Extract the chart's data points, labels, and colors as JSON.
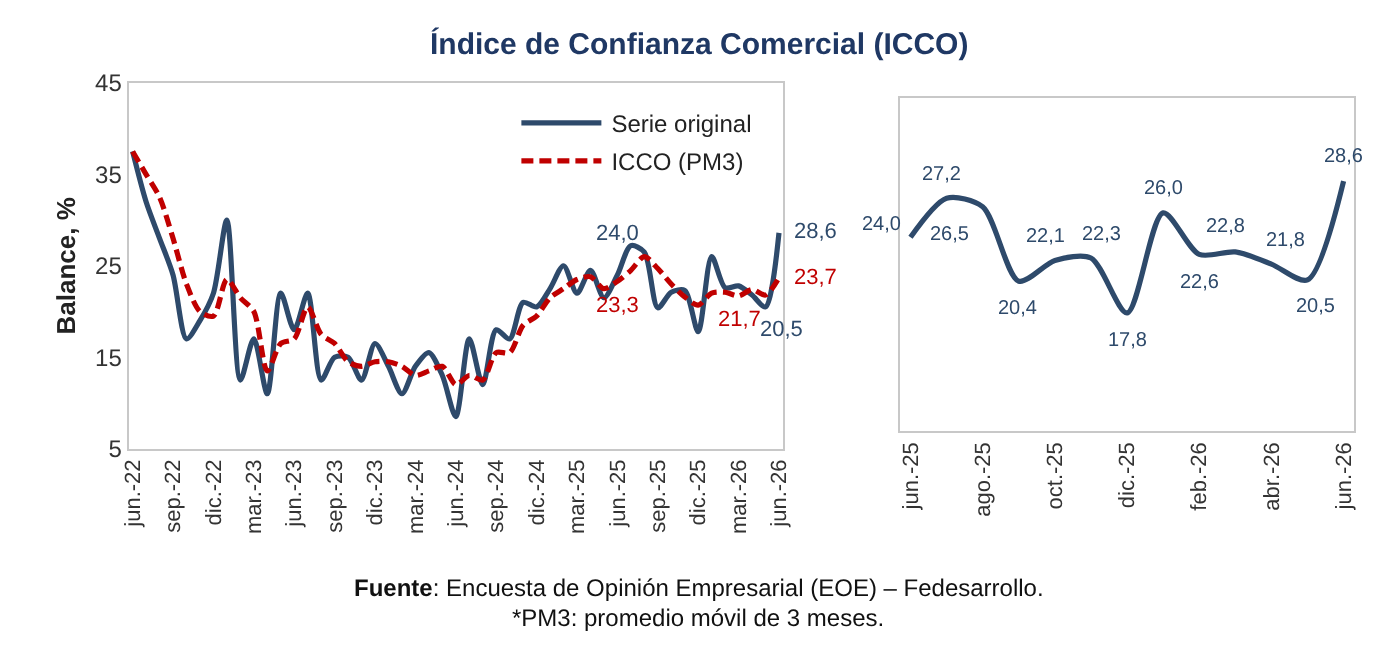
{
  "chart_data": [
    {
      "type": "line",
      "title": "Índice de Confianza Comercial (ICCO)",
      "ylabel": "Balance, %",
      "categories": [
        "jun.-22",
        null,
        null,
        "sep.-22",
        null,
        null,
        "dic.-22",
        null,
        null,
        "mar.-23",
        null,
        null,
        "jun.-23",
        null,
        null,
        "sep.-23",
        null,
        null,
        "dic.-23",
        null,
        null,
        "mar.-24",
        null,
        null,
        "jun.-24",
        null,
        null,
        "sep.-24",
        null,
        null,
        "dic.-24",
        null,
        null,
        "mar.-25",
        null,
        null,
        "jun.-25",
        null,
        null,
        "sep.-25",
        null,
        null,
        "dic.-25",
        null,
        null,
        "mar.-26",
        null,
        null,
        "jun.-26"
      ],
      "series": [
        {
          "name": "Serie original",
          "color": "#2e4a6b",
          "line_style": "solid",
          "values": [
            37.5,
            32,
            28,
            24,
            17,
            19,
            22,
            30,
            12.5,
            17,
            11,
            22,
            18,
            22,
            12.5,
            15,
            15,
            12.5,
            16.5,
            14,
            11,
            14,
            15.5,
            13,
            8.5,
            17,
            12,
            18,
            17,
            21,
            20.5,
            22.5,
            25,
            22,
            24.5,
            21.5,
            24.0,
            27.2,
            26.5,
            20.4,
            22.1,
            22.3,
            17.8,
            26.0,
            22.6,
            22.8,
            21.8,
            20.5,
            28.6
          ],
          "value_labels": [
            null,
            null,
            null,
            null,
            null,
            null,
            null,
            null,
            null,
            null,
            null,
            null,
            null,
            null,
            null,
            null,
            null,
            null,
            null,
            null,
            null,
            null,
            null,
            null,
            null,
            null,
            null,
            null,
            null,
            null,
            null,
            null,
            null,
            null,
            null,
            null,
            "24,0",
            null,
            null,
            null,
            null,
            null,
            null,
            null,
            null,
            null,
            null,
            "20,5",
            "28,6"
          ]
        },
        {
          "name": "ICCO (PM3)",
          "color": "#c00000",
          "line_style": "dashed",
          "values": [
            37.5,
            35,
            32.5,
            28,
            23,
            20,
            19.5,
            23.5,
            21.5,
            20,
            13.5,
            16.5,
            17,
            20.5,
            17.5,
            16.5,
            14.5,
            14,
            14.5,
            14.5,
            14,
            13,
            13.5,
            14,
            12,
            13,
            12.5,
            15.5,
            15.5,
            18.5,
            19.5,
            21.5,
            22.5,
            23.5,
            23.8,
            22.5,
            23.3,
            24.5,
            26,
            24.7,
            23,
            21.6,
            20.7,
            22,
            22.1,
            21.7,
            22.4,
            21.8,
            23.7
          ],
          "value_labels": [
            null,
            null,
            null,
            null,
            null,
            null,
            null,
            null,
            null,
            null,
            null,
            null,
            null,
            null,
            null,
            null,
            null,
            null,
            null,
            null,
            null,
            null,
            null,
            null,
            null,
            null,
            null,
            null,
            null,
            null,
            null,
            null,
            null,
            null,
            null,
            null,
            "23,3",
            null,
            null,
            null,
            null,
            null,
            null,
            null,
            null,
            "21,7",
            null,
            null,
            "23,7"
          ]
        }
      ],
      "ylim": [
        5,
        45
      ],
      "yticks": [
        5,
        15,
        25,
        35,
        45
      ],
      "legend": "top right",
      "marker": "none",
      "annotations": [
        "Fuente: Encuesta de Opinión Empresarial (EOE) – Fedesarrollo.",
        "*PM3: promedio móvil de 3 meses."
      ]
    },
    {
      "type": "line",
      "categories": [
        "jun.-25",
        null,
        "ago.-25",
        null,
        "oct.-25",
        null,
        "dic.-25",
        null,
        "feb.-26",
        null,
        "abr.-26",
        null,
        "jun.-26"
      ],
      "series": [
        {
          "color": "#2e4a6b",
          "values": [
            24.0,
            27.2,
            26.5,
            20.4,
            22.1,
            22.3,
            17.8,
            26.0,
            22.6,
            22.8,
            21.8,
            20.5,
            28.6
          ],
          "value_labels": [
            "24,0",
            "27,2",
            "26,5",
            "20,4",
            "22,1",
            "22,3",
            "17,8",
            "26,0",
            "22,6",
            "22,8",
            "21,8",
            "20,5",
            "28,6"
          ]
        }
      ],
      "tick_labels": "x",
      "legend": false,
      "marker": "none"
    }
  ]
}
